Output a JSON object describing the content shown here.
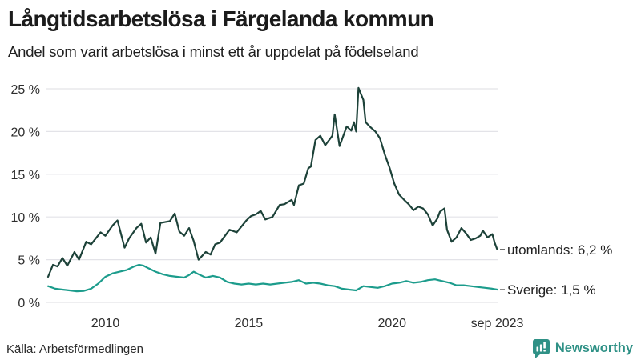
{
  "header": {
    "title": "Långtidsarbetslösa i Färgelanda kommun",
    "subtitle": "Andel som varit arbetslösa i minst ett år uppdelat på födelseland"
  },
  "footer": {
    "source": "Källa: Arbetsförmedlingen",
    "brand": "Newsworthy",
    "brand_color": "#2f9186"
  },
  "chart_data": {
    "type": "line",
    "title": "Långtidsarbetslösa i Färgelanda kommun",
    "subtitle": "Andel som varit arbetslösa i minst ett år uppdelat på födelseland",
    "x_unit": "decimal_year",
    "x_range": [
      2008.0,
      2023.75
    ],
    "ylim": [
      0,
      26.5
    ],
    "grid": "horizontal",
    "legend_position": "end-of-line-labels",
    "style": {
      "grid_color": "#e3e3e8",
      "axis_text_color": "#2e2e2e",
      "end_label_color": "#222222",
      "dash_color": "#6b6b6b",
      "background": "#ffffff"
    },
    "yticks": [
      {
        "v": 0,
        "label": "0 %"
      },
      {
        "v": 5,
        "label": "5 %"
      },
      {
        "v": 10,
        "label": "10 %"
      },
      {
        "v": 15,
        "label": "15 %"
      },
      {
        "v": 20,
        "label": "20 %"
      },
      {
        "v": 25,
        "label": "25 %"
      }
    ],
    "xticks": [
      {
        "x": 2010,
        "label": "2010"
      },
      {
        "x": 2015,
        "label": "2015"
      },
      {
        "x": 2020,
        "label": "2020"
      },
      {
        "x": 2023.67,
        "label": "sep 2023"
      }
    ],
    "series": [
      {
        "name": "utomlands",
        "end_label": "utomlands: 6,2 %",
        "end_value_text": "6,2 %",
        "color": "#1d4239",
        "x": [
          2008.0,
          2008.17,
          2008.33,
          2008.5,
          2008.67,
          2008.92,
          2009.08,
          2009.33,
          2009.5,
          2009.83,
          2010.0,
          2010.25,
          2010.42,
          2010.67,
          2010.83,
          2011.08,
          2011.25,
          2011.42,
          2011.58,
          2011.75,
          2011.92,
          2012.08,
          2012.25,
          2012.42,
          2012.58,
          2012.75,
          2012.92,
          2013.08,
          2013.25,
          2013.5,
          2013.67,
          2013.83,
          2014.0,
          2014.33,
          2014.58,
          2014.92,
          2015.08,
          2015.25,
          2015.42,
          2015.58,
          2015.83,
          2016.08,
          2016.25,
          2016.5,
          2016.58,
          2016.75,
          2016.92,
          2017.08,
          2017.17,
          2017.33,
          2017.5,
          2017.67,
          2017.92,
          2018.0,
          2018.17,
          2018.42,
          2018.58,
          2018.67,
          2018.75,
          2018.83,
          2019.0,
          2019.08,
          2019.25,
          2019.42,
          2019.58,
          2019.75,
          2019.92,
          2020.08,
          2020.25,
          2020.42,
          2020.58,
          2020.75,
          2020.92,
          2021.08,
          2021.25,
          2021.42,
          2021.58,
          2021.67,
          2021.83,
          2021.92,
          2022.08,
          2022.25,
          2022.42,
          2022.58,
          2022.75,
          2022.92,
          2023.08,
          2023.17,
          2023.33,
          2023.5,
          2023.58,
          2023.67
        ],
        "values": [
          3.0,
          4.4,
          4.2,
          5.2,
          4.3,
          5.9,
          5.0,
          7.1,
          6.8,
          8.2,
          7.8,
          9.0,
          9.6,
          6.4,
          7.5,
          8.7,
          9.2,
          7.0,
          7.6,
          5.7,
          9.3,
          9.4,
          9.5,
          10.4,
          8.3,
          7.8,
          8.7,
          7.2,
          5.0,
          5.9,
          5.6,
          6.8,
          7.0,
          8.5,
          8.2,
          9.6,
          10.1,
          10.3,
          10.7,
          9.7,
          10.0,
          11.4,
          11.5,
          12.0,
          11.4,
          13.7,
          13.9,
          15.7,
          15.9,
          19.0,
          19.5,
          18.4,
          19.5,
          22.0,
          18.3,
          20.6,
          20.1,
          21.1,
          20.0,
          25.1,
          23.7,
          21.1,
          20.5,
          20.0,
          19.2,
          17.3,
          15.7,
          13.9,
          12.6,
          12.0,
          11.5,
          10.8,
          11.2,
          11.0,
          10.3,
          9.0,
          9.8,
          10.6,
          11.0,
          8.5,
          7.1,
          7.6,
          8.7,
          8.1,
          7.3,
          7.5,
          7.8,
          8.4,
          7.6,
          8.0,
          7.0,
          6.2
        ]
      },
      {
        "name": "Sverige",
        "end_label": "Sverige: 1,5 %",
        "end_value_text": "1,5 %",
        "color": "#1c9c8c",
        "x": [
          2008.0,
          2008.25,
          2008.5,
          2008.75,
          2009.0,
          2009.25,
          2009.5,
          2009.75,
          2010.0,
          2010.25,
          2010.5,
          2010.75,
          2011.0,
          2011.17,
          2011.33,
          2011.5,
          2011.75,
          2012.0,
          2012.25,
          2012.5,
          2012.75,
          2012.92,
          2013.08,
          2013.25,
          2013.5,
          2013.75,
          2014.0,
          2014.25,
          2014.5,
          2014.75,
          2015.0,
          2015.25,
          2015.5,
          2015.75,
          2016.0,
          2016.25,
          2016.5,
          2016.75,
          2017.0,
          2017.25,
          2017.5,
          2017.75,
          2018.0,
          2018.25,
          2018.5,
          2018.75,
          2019.0,
          2019.25,
          2019.5,
          2019.75,
          2020.0,
          2020.25,
          2020.5,
          2020.75,
          2021.0,
          2021.25,
          2021.5,
          2021.75,
          2022.0,
          2022.25,
          2022.5,
          2022.75,
          2023.0,
          2023.25,
          2023.5,
          2023.67
        ],
        "values": [
          1.9,
          1.6,
          1.5,
          1.4,
          1.3,
          1.35,
          1.6,
          2.2,
          3.0,
          3.4,
          3.6,
          3.8,
          4.2,
          4.4,
          4.3,
          4.0,
          3.6,
          3.3,
          3.1,
          3.0,
          2.9,
          3.2,
          3.6,
          3.3,
          2.9,
          3.1,
          2.9,
          2.4,
          2.2,
          2.1,
          2.2,
          2.1,
          2.2,
          2.1,
          2.2,
          2.3,
          2.4,
          2.6,
          2.2,
          2.3,
          2.2,
          2.0,
          1.9,
          1.6,
          1.5,
          1.4,
          1.9,
          1.8,
          1.7,
          1.9,
          2.2,
          2.3,
          2.5,
          2.3,
          2.4,
          2.6,
          2.7,
          2.5,
          2.3,
          2.0,
          2.0,
          1.9,
          1.8,
          1.7,
          1.6,
          1.5
        ]
      }
    ]
  }
}
